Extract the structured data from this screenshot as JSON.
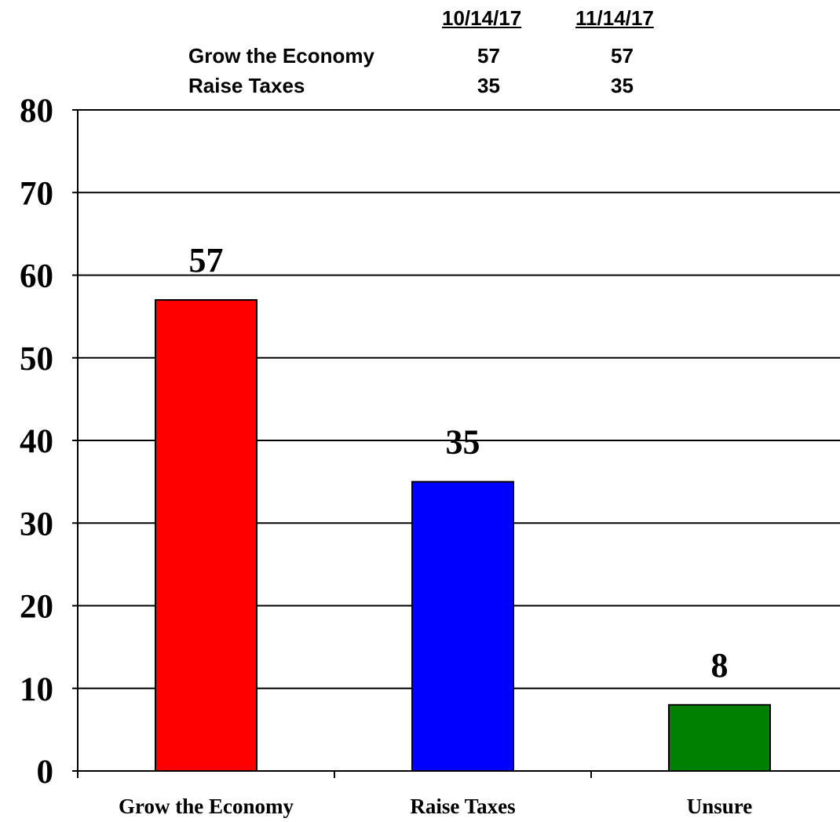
{
  "trend_table": {
    "headers": [
      "10/14/17",
      "11/14/17"
    ],
    "rows": [
      {
        "label": "Grow the Economy",
        "values": [
          "57",
          "57"
        ]
      },
      {
        "label": "Raise Taxes",
        "values": [
          "35",
          "35"
        ]
      }
    ]
  },
  "chart_data": {
    "type": "bar",
    "categories": [
      "Grow the Economy",
      "Raise Taxes",
      "Unsure"
    ],
    "values": [
      57,
      35,
      8
    ],
    "data_labels": [
      "57",
      "35",
      "8"
    ],
    "colors": [
      "#ff0000",
      "#0000ff",
      "#008000"
    ],
    "ylim": [
      0,
      80
    ],
    "yticks": [
      0,
      10,
      20,
      30,
      40,
      50,
      60,
      70,
      80
    ],
    "grid": true,
    "title": "",
    "xlabel": "",
    "ylabel": ""
  }
}
